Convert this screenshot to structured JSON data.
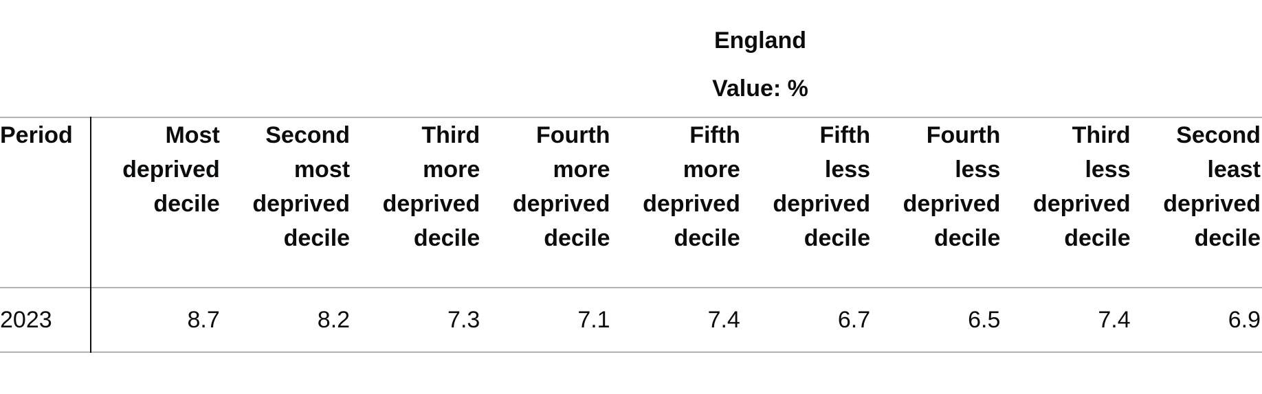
{
  "header": {
    "area": "England",
    "value_unit": "Value: %"
  },
  "table": {
    "period_header": "Period",
    "columns": [
      [
        "Most",
        "deprived",
        "decile"
      ],
      [
        "Second",
        "most",
        "deprived",
        "decile"
      ],
      [
        "Third",
        "more",
        "deprived",
        "decile"
      ],
      [
        "Fourth",
        "more",
        "deprived",
        "decile"
      ],
      [
        "Fifth",
        "more",
        "deprived",
        "decile"
      ],
      [
        "Fifth",
        "less",
        "deprived",
        "decile"
      ],
      [
        "Fourth",
        "less",
        "deprived",
        "decile"
      ],
      [
        "Third",
        "less",
        "deprived",
        "decile"
      ],
      [
        "Second",
        "least",
        "deprived",
        "decile"
      ]
    ],
    "rows": [
      {
        "period": "2023",
        "values": [
          "8.7",
          "8.2",
          "7.3",
          "7.1",
          "7.4",
          "6.7",
          "6.5",
          "7.4",
          "6.9"
        ]
      }
    ]
  }
}
